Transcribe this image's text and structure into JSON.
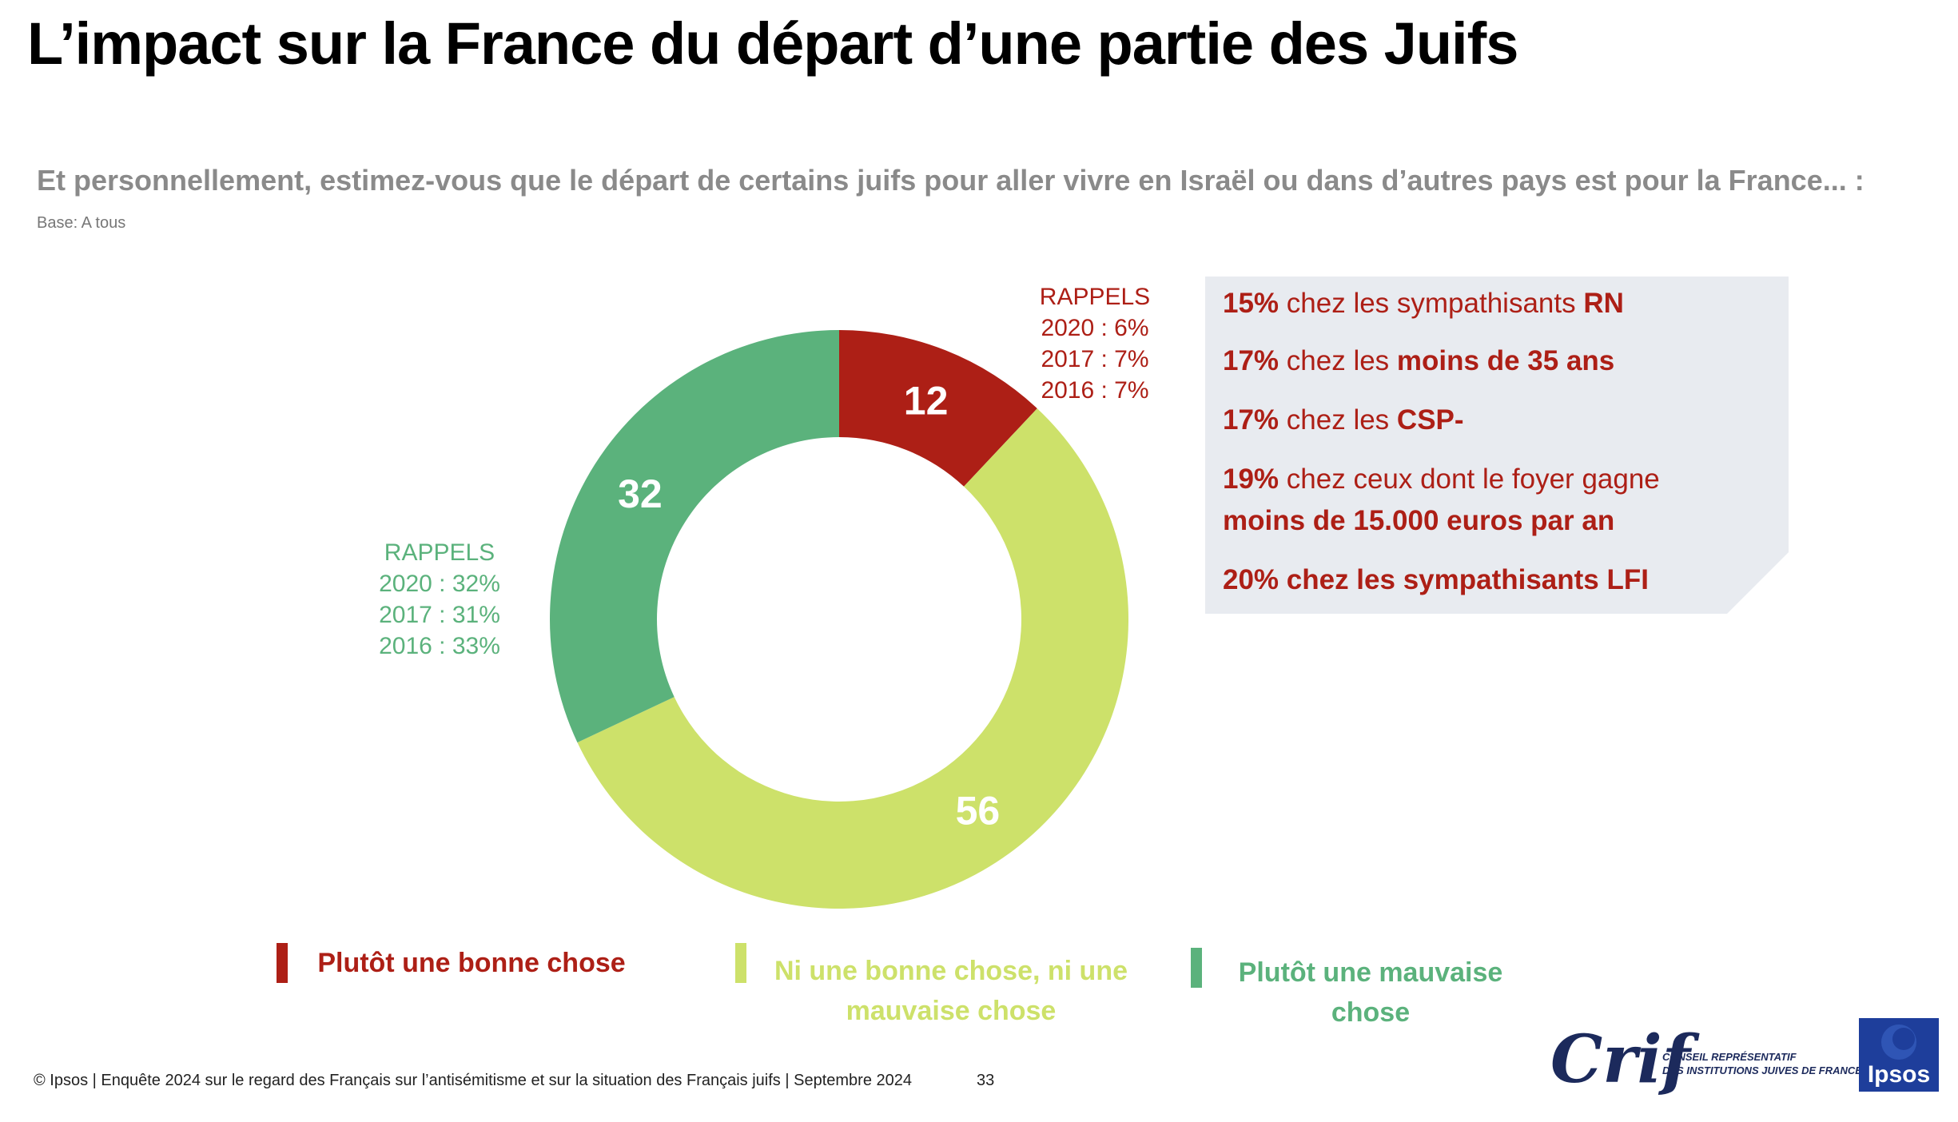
{
  "title": "L’impact sur la France du départ d’une partie des Juifs",
  "question": "Et personnellement, estimez-vous que le départ de certains juifs pour aller vivre en Israël ou dans d’autres pays est pour la France... :",
  "base": "Base: A tous",
  "colors": {
    "red": "#ad1f16",
    "lime": "#cde16a",
    "green": "#5bb27c",
    "callout_bg": "#e8ebf0"
  },
  "chart_data": {
    "type": "pie",
    "donut": true,
    "categories": [
      "Plutôt une bonne chose",
      "Ni une bonne chose, ni une mauvaise chose",
      "Plutôt une mauvaise chose"
    ],
    "values": [
      12,
      56,
      32
    ],
    "colors": [
      "#ad1f16",
      "#cde16a",
      "#5bb27c"
    ],
    "data_labels": [
      "12",
      "56",
      "32"
    ],
    "legend_position": "bottom"
  },
  "rappels_red": {
    "heading": "RAPPELS",
    "lines": [
      "2020 : 6%",
      "2017 : 7%",
      "2016 : 7%"
    ]
  },
  "rappels_green": {
    "heading": "RAPPELS",
    "lines": [
      "2020 : 32%",
      "2017 : 31%",
      "2016 : 33%"
    ]
  },
  "callout": {
    "l1": {
      "pct": "15%",
      "text": " chez les sympathisants ",
      "bold": "RN"
    },
    "l2": {
      "pct": "17%",
      "text": " chez les ",
      "bold": "moins de 35 ans"
    },
    "l3": {
      "pct": "17%",
      "text": " chez les ",
      "bold": "CSP-"
    },
    "l4": {
      "pct": "19%",
      "text": " chez ceux dont le foyer gagne"
    },
    "l5": {
      "bold": "moins de 15.000 euros par an"
    },
    "l6": {
      "bold": "20% chez les sympathisants LFI"
    }
  },
  "legend": {
    "item1": {
      "line1": "Plutôt une bonne chose",
      "line2": ""
    },
    "item2": {
      "line1": "Ni une bonne chose, ni une",
      "line2": "mauvaise chose"
    },
    "item3": {
      "line1": "Plutôt une mauvaise",
      "line2": "chose"
    }
  },
  "footer": "© Ipsos | Enquête 2024 sur le regard des Français sur l’antisémitisme et sur la situation des Français juifs | Septembre 2024",
  "page_number": "33",
  "logos": {
    "crif": {
      "word": "Crif",
      "tagline1": "CONSEIL REPRÉSENTATIF",
      "tagline2": "DES INSTITUTIONS JUIVES DE FRANCE"
    },
    "ipsos": {
      "word": "Ipsos"
    }
  }
}
